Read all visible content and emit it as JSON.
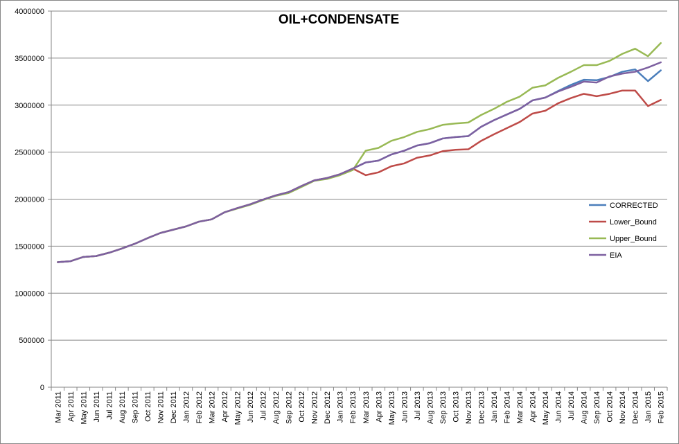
{
  "chart_data": {
    "type": "line",
    "title": "OIL+CONDENSATE",
    "xlabel": "",
    "ylabel": "",
    "ylim": [
      0,
      4000000
    ],
    "yticks": [
      "0",
      "500000",
      "1000000",
      "1500000",
      "2000000",
      "2500000",
      "3000000",
      "3500000",
      "4000000"
    ],
    "ytick_values": [
      0,
      500000,
      1000000,
      1500000,
      2000000,
      2500000,
      3000000,
      3500000,
      4000000
    ],
    "grid": "horizontal",
    "legend_position": "right",
    "categories": [
      "Mar 2011",
      "Apr 2011",
      "May 2011",
      "Jun 2011",
      "Jul 2011",
      "Aug 2011",
      "Sep 2011",
      "Oct 2011",
      "Nov 2011",
      "Dec 2011",
      "Jan 2012",
      "Feb 2012",
      "Mar 2012",
      "Apr 2012",
      "May 2012",
      "Jun 2012",
      "Jul 2012",
      "Aug 2012",
      "Sep 2012",
      "Oct 2012",
      "Nov 2012",
      "Dec 2012",
      "Jan 2013",
      "Feb 2013",
      "Mar 2013",
      "Apr 2013",
      "May 2013",
      "Jun 2013",
      "Jul 2013",
      "Aug 2013",
      "Sep 2013",
      "Oct 2013",
      "Nov 2013",
      "Dec 2013",
      "Jan 2014",
      "Feb 2014",
      "Mar 2014",
      "Apr 2014",
      "May 2014",
      "Jun 2014",
      "Jul 2014",
      "Aug 2014",
      "Sep 2014",
      "Oct 2014",
      "Nov 2014",
      "Dec 2014",
      "Jan 2015",
      "Feb 2015"
    ],
    "series": [
      {
        "name": "CORRECTED",
        "color": "#4a7ebb",
        "values": [
          1330000,
          1340000,
          1385000,
          1395000,
          1430000,
          1475000,
          1525000,
          1585000,
          1640000,
          1675000,
          1710000,
          1760000,
          1785000,
          1860000,
          1905000,
          1945000,
          1995000,
          2040000,
          2075000,
          2140000,
          2200000,
          2225000,
          2265000,
          2325000,
          2390000,
          2410000,
          2475000,
          2515000,
          2570000,
          2595000,
          2645000,
          2660000,
          2670000,
          2770000,
          2840000,
          2900000,
          2960000,
          3050000,
          3080000,
          3150000,
          3215000,
          3270000,
          3265000,
          3300000,
          3355000,
          3380000,
          3255000,
          3370000
        ]
      },
      {
        "name": "Lower_Bound",
        "color": "#be4b48",
        "values": [
          1330000,
          1340000,
          1385000,
          1395000,
          1430000,
          1475000,
          1525000,
          1585000,
          1640000,
          1675000,
          1710000,
          1760000,
          1785000,
          1860000,
          1905000,
          1945000,
          1995000,
          2040000,
          2075000,
          2140000,
          2200000,
          2225000,
          2265000,
          2325000,
          2255000,
          2285000,
          2350000,
          2380000,
          2440000,
          2465000,
          2510000,
          2525000,
          2530000,
          2620000,
          2690000,
          2755000,
          2820000,
          2910000,
          2940000,
          3020000,
          3075000,
          3120000,
          3095000,
          3120000,
          3155000,
          3155000,
          2990000,
          3055000
        ]
      },
      {
        "name": "Upper_Bound",
        "color": "#98b954",
        "values": [
          1330000,
          1340000,
          1385000,
          1395000,
          1430000,
          1475000,
          1525000,
          1585000,
          1640000,
          1675000,
          1710000,
          1760000,
          1785000,
          1860000,
          1900000,
          1940000,
          1990000,
          2035000,
          2065000,
          2130000,
          2195000,
          2215000,
          2255000,
          2310000,
          2515000,
          2545000,
          2620000,
          2660000,
          2715000,
          2745000,
          2790000,
          2805000,
          2815000,
          2895000,
          2960000,
          3035000,
          3090000,
          3185000,
          3210000,
          3290000,
          3355000,
          3425000,
          3425000,
          3470000,
          3545000,
          3600000,
          3520000,
          3660000
        ]
      },
      {
        "name": "EIA",
        "color": "#7d60a0",
        "values": [
          1330000,
          1340000,
          1385000,
          1395000,
          1430000,
          1475000,
          1525000,
          1585000,
          1640000,
          1675000,
          1710000,
          1760000,
          1785000,
          1860000,
          1905000,
          1945000,
          1995000,
          2040000,
          2075000,
          2140000,
          2200000,
          2225000,
          2265000,
          2325000,
          2390000,
          2410000,
          2475000,
          2515000,
          2570000,
          2595000,
          2645000,
          2660000,
          2670000,
          2770000,
          2840000,
          2900000,
          2960000,
          3050000,
          3080000,
          3145000,
          3195000,
          3250000,
          3240000,
          3305000,
          3335000,
          3355000,
          3400000,
          3455000
        ]
      }
    ]
  }
}
